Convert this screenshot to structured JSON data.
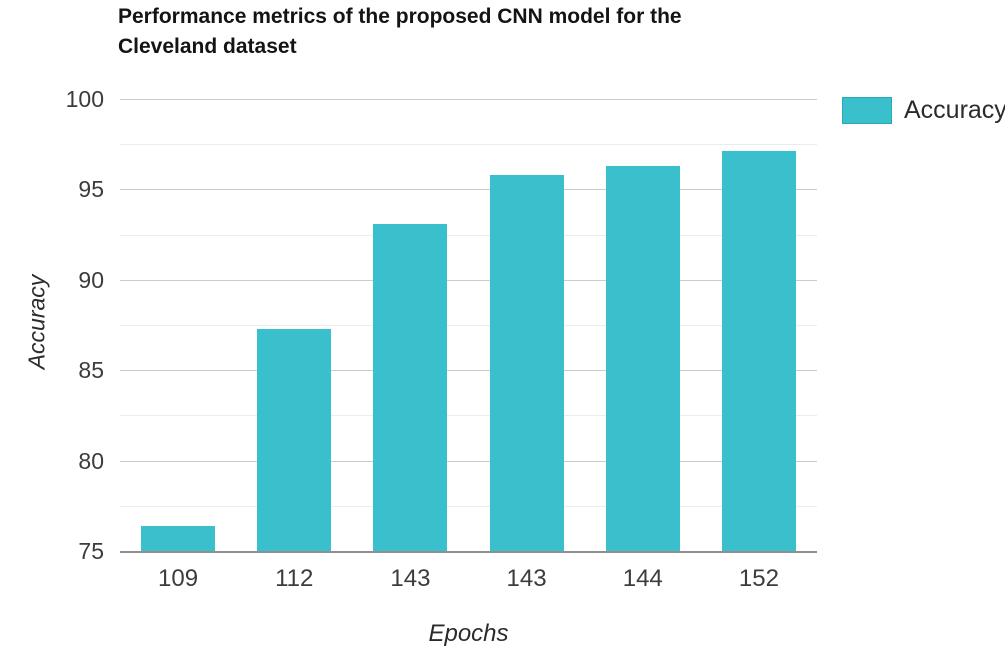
{
  "chart_data": {
    "type": "bar",
    "title": "Performance metrics of the proposed CNN model for the Cleveland dataset",
    "categories": [
      "109",
      "112",
      "143",
      "143",
      "144",
      "152"
    ],
    "series": [
      {
        "name": "Accuracy",
        "values": [
          76.4,
          87.3,
          93.1,
          95.8,
          96.3,
          97.1
        ]
      }
    ],
    "xlabel": "Epochs",
    "ylabel": "Accuracy",
    "ylim": [
      75,
      100
    ],
    "yticks": [
      75,
      80,
      85,
      90,
      95,
      100
    ],
    "minor_tick_step": 2.5,
    "grid": true,
    "legend_position": "top-right",
    "background": "#ffffff"
  },
  "colors": {
    "bar": "#3ac0cc",
    "major_grid": "#cccccc",
    "minor_grid": "#ececec",
    "baseline": "#8f8f8f"
  }
}
